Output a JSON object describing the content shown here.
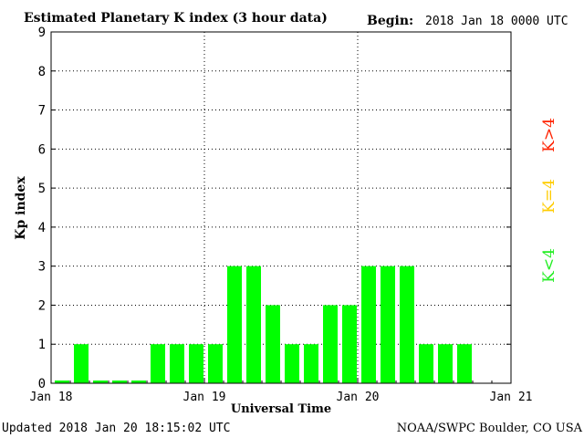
{
  "chart_data": {
    "type": "bar",
    "title": "Estimated Planetary K index (3 hour data)",
    "begin_label": "Begin:",
    "begin_value": "2018 Jan 18 0000 UTC",
    "xlabel": "Universal Time",
    "ylabel": "Kp index",
    "ylim": [
      0,
      9
    ],
    "y_ticks": [
      "0",
      "1",
      "2",
      "3",
      "4",
      "5",
      "6",
      "7",
      "8",
      "9"
    ],
    "x_ticks": [
      "Jan 18",
      "Jan 19",
      "Jan 20",
      "Jan 21"
    ],
    "interval_hours": 3,
    "days": 3,
    "values": [
      0,
      1,
      0,
      0,
      0,
      1,
      1,
      1,
      1,
      3,
      3,
      2,
      1,
      1,
      2,
      2,
      3,
      3,
      3,
      1,
      1,
      1
    ],
    "bar_color": "#00ff00",
    "grid": "dotted",
    "legend": {
      "position": "right",
      "entries": [
        {
          "label": "K>4",
          "color": "#ff2200"
        },
        {
          "label": "K=4",
          "color": "#ffcc00"
        },
        {
          "label": "K<4",
          "color": "#22ee22"
        }
      ]
    }
  },
  "footer": {
    "updated": "Updated 2018 Jan 20 18:15:02 UTC",
    "source": "NOAA/SWPC Boulder, CO USA"
  }
}
